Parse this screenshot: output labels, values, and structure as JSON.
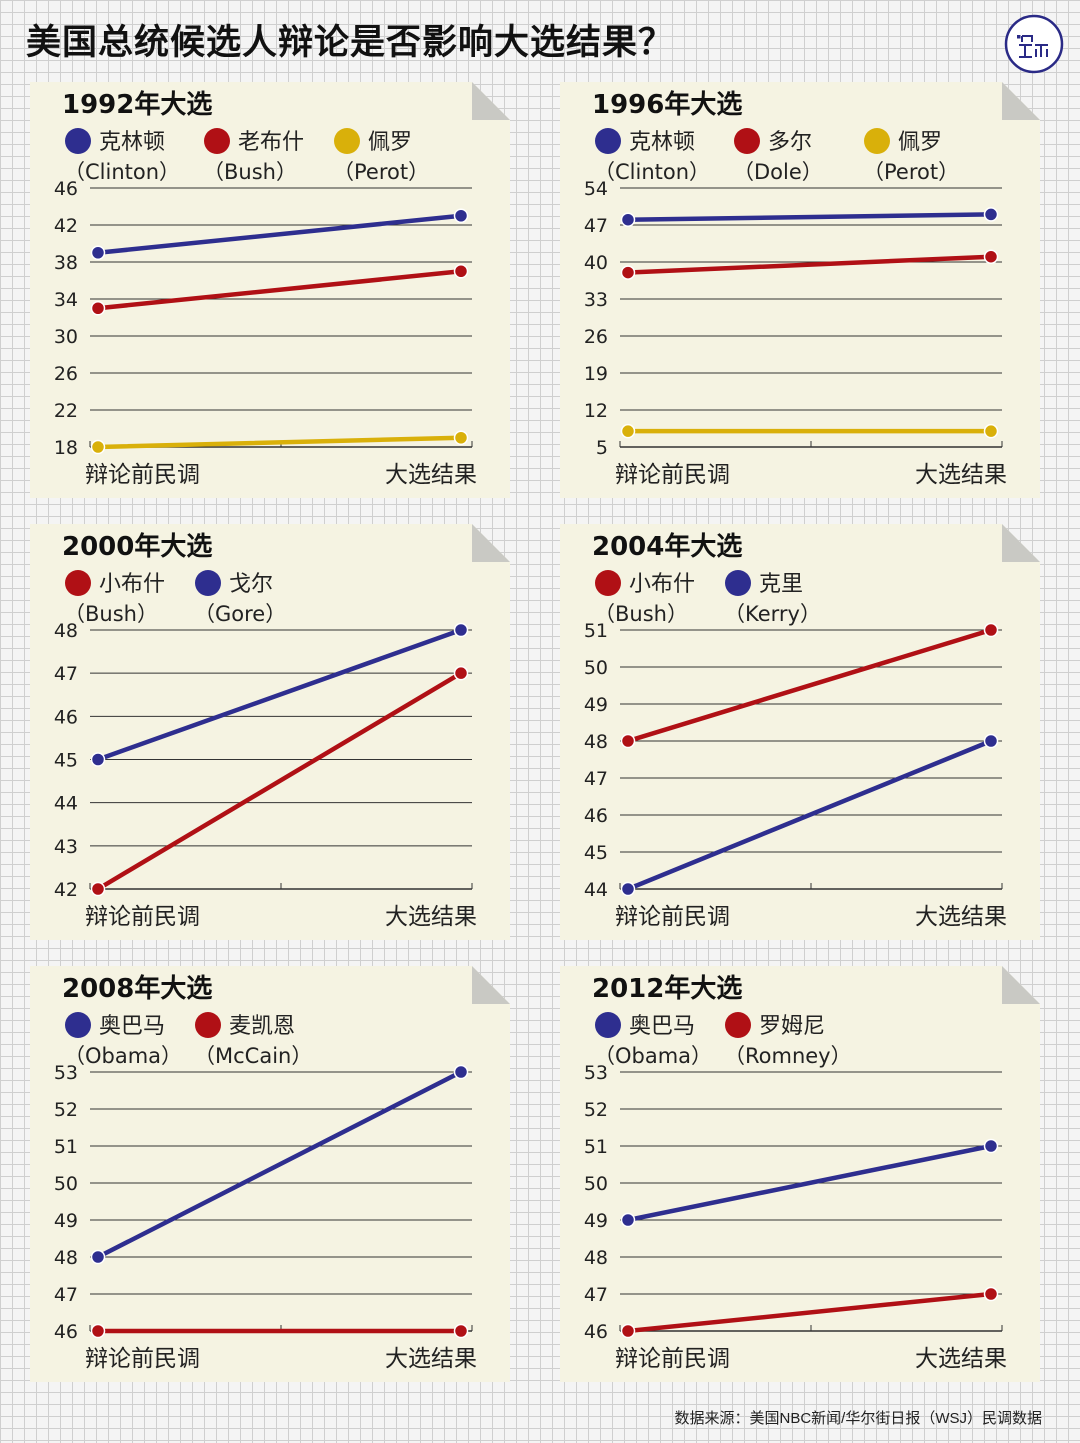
{
  "title": "美国总统候选人辩论是否影响大选结果？",
  "source": "数据来源：美国NBC新闻/华尔街日报（WSJ）民调数据",
  "colors": {
    "blue": "#2e2e8f",
    "red": "#b01015",
    "yellow": "#d9b00a",
    "panel": "#f5f3e2",
    "grid": "#333333"
  },
  "chart_data": [
    {
      "type": "line",
      "title": "1992年大选",
      "categories": [
        "辩论前民调",
        "大选结果"
      ],
      "yticks": [
        18,
        22,
        26,
        30,
        34,
        38,
        42,
        46
      ],
      "ylim": [
        18,
        46
      ],
      "series": [
        {
          "name": "克林顿",
          "name_en": "（Clinton）",
          "color": "#2e2e8f",
          "values": [
            39,
            43
          ]
        },
        {
          "name": "老布什",
          "name_en": "（Bush）",
          "color": "#b01015",
          "values": [
            33,
            37
          ]
        },
        {
          "name": "佩罗",
          "name_en": "（Perot）",
          "color": "#d9b00a",
          "values": [
            18,
            19
          ]
        }
      ]
    },
    {
      "type": "line",
      "title": "1996年大选",
      "categories": [
        "辩论前民调",
        "大选结果"
      ],
      "yticks": [
        5,
        12,
        19,
        26,
        33,
        40,
        47,
        54
      ],
      "ylim": [
        5,
        54
      ],
      "series": [
        {
          "name": "克林顿",
          "name_en": "（Clinton）",
          "color": "#2e2e8f",
          "values": [
            48,
            49
          ]
        },
        {
          "name": "多尔",
          "name_en": "（Dole）",
          "color": "#b01015",
          "values": [
            38,
            41
          ]
        },
        {
          "name": "佩罗",
          "name_en": "（Perot）",
          "color": "#d9b00a",
          "values": [
            8,
            8
          ]
        }
      ]
    },
    {
      "type": "line",
      "title": "2000年大选",
      "categories": [
        "辩论前民调",
        "大选结果"
      ],
      "yticks": [
        42,
        43,
        44,
        45,
        46,
        47,
        48
      ],
      "ylim": [
        42,
        48
      ],
      "series": [
        {
          "name": "小布什",
          "name_en": "（Bush）",
          "color": "#b01015",
          "values": [
            42,
            47
          ]
        },
        {
          "name": "戈尔",
          "name_en": "（Gore）",
          "color": "#2e2e8f",
          "values": [
            45,
            48
          ]
        }
      ]
    },
    {
      "type": "line",
      "title": "2004年大选",
      "categories": [
        "辩论前民调",
        "大选结果"
      ],
      "yticks": [
        44,
        45,
        46,
        47,
        48,
        49,
        50,
        51
      ],
      "ylim": [
        44,
        51
      ],
      "series": [
        {
          "name": "小布什",
          "name_en": "（Bush）",
          "color": "#b01015",
          "values": [
            48,
            51
          ]
        },
        {
          "name": "克里",
          "name_en": "（Kerry）",
          "color": "#2e2e8f",
          "values": [
            44,
            48
          ]
        }
      ]
    },
    {
      "type": "line",
      "title": "2008年大选",
      "categories": [
        "辩论前民调",
        "大选结果"
      ],
      "yticks": [
        46,
        47,
        48,
        49,
        50,
        51,
        52,
        53
      ],
      "ylim": [
        46,
        53
      ],
      "series": [
        {
          "name": "奥巴马",
          "name_en": "（Obama）",
          "color": "#2e2e8f",
          "values": [
            48,
            53
          ]
        },
        {
          "name": "麦凯恩",
          "name_en": "（McCain）",
          "color": "#b01015",
          "values": [
            46,
            46
          ]
        }
      ]
    },
    {
      "type": "line",
      "title": "2012年大选",
      "categories": [
        "辩论前民调",
        "大选结果"
      ],
      "yticks": [
        46,
        47,
        48,
        49,
        50,
        51,
        52,
        53
      ],
      "ylim": [
        46,
        53
      ],
      "series": [
        {
          "name": "奥巴马",
          "name_en": "（Obama）",
          "color": "#2e2e8f",
          "values": [
            49,
            51
          ]
        },
        {
          "name": "罗姆尼",
          "name_en": "（Romney）",
          "color": "#b01015",
          "values": [
            46,
            47
          ]
        }
      ]
    }
  ]
}
